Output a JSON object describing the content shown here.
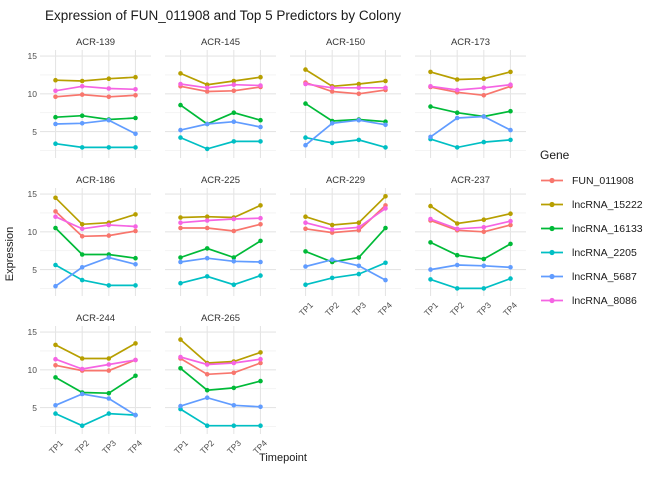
{
  "title": "Expression of FUN_011908 and Top 5 Predictors by Colony",
  "chart_data": {
    "type": "line",
    "facet_by": "Colony",
    "categories": [
      "TP1",
      "TP2",
      "TP3",
      "TP4"
    ],
    "xlabel": "Timepoint",
    "ylabel": "Expression",
    "ylim": [
      1.5,
      15.8
    ],
    "yticks": [
      5,
      10,
      15
    ],
    "yticks_minor": [
      2.5,
      7.5,
      12.5
    ],
    "grid": true,
    "legend_title": "Gene",
    "legend_position": "right",
    "grid_major_color": "#E5E5E5",
    "grid_minor_color": "#F2F2F2",
    "series_meta": [
      {
        "name": "FUN_011908",
        "color": "#F8766D"
      },
      {
        "name": "lncRNA_15222",
        "color": "#B79F00"
      },
      {
        "name": "lncRNA_16133",
        "color": "#00BA38"
      },
      {
        "name": "lncRNA_2205",
        "color": "#00BFC4"
      },
      {
        "name": "lncRNA_5687",
        "color": "#619CFF"
      },
      {
        "name": "lncRNA_8086",
        "color": "#F564E3"
      }
    ],
    "facets": [
      {
        "name": "ACR-139",
        "series": [
          {
            "name": "FUN_011908",
            "values": [
              9.6,
              9.9,
              9.6,
              9.8
            ]
          },
          {
            "name": "lncRNA_15222",
            "values": [
              11.8,
              11.7,
              12.0,
              12.2
            ]
          },
          {
            "name": "lncRNA_16133",
            "values": [
              6.9,
              7.1,
              6.6,
              6.8
            ]
          },
          {
            "name": "lncRNA_2205",
            "values": [
              3.4,
              2.9,
              2.9,
              2.9
            ]
          },
          {
            "name": "lncRNA_5687",
            "values": [
              6.0,
              6.1,
              6.5,
              4.7
            ]
          },
          {
            "name": "lncRNA_8086",
            "values": [
              10.4,
              11.0,
              10.7,
              10.6
            ]
          }
        ]
      },
      {
        "name": "ACR-145",
        "series": [
          {
            "name": "FUN_011908",
            "values": [
              11.0,
              10.3,
              10.4,
              10.9
            ]
          },
          {
            "name": "lncRNA_15222",
            "values": [
              12.7,
              11.2,
              11.7,
              12.2
            ]
          },
          {
            "name": "lncRNA_16133",
            "values": [
              8.5,
              6.0,
              7.5,
              6.5
            ]
          },
          {
            "name": "lncRNA_2205",
            "values": [
              4.2,
              2.7,
              3.7,
              3.7
            ]
          },
          {
            "name": "lncRNA_5687",
            "values": [
              5.2,
              6.0,
              6.3,
              5.6
            ]
          },
          {
            "name": "lncRNA_8086",
            "values": [
              11.3,
              10.8,
              11.2,
              11.1
            ]
          }
        ]
      },
      {
        "name": "ACR-150",
        "series": [
          {
            "name": "FUN_011908",
            "values": [
              11.5,
              10.3,
              10.0,
              10.5
            ]
          },
          {
            "name": "lncRNA_15222",
            "values": [
              13.2,
              11.0,
              11.3,
              11.7
            ]
          },
          {
            "name": "lncRNA_16133",
            "values": [
              8.7,
              6.4,
              6.6,
              6.3
            ]
          },
          {
            "name": "lncRNA_2205",
            "values": [
              4.2,
              3.5,
              3.9,
              2.9
            ]
          },
          {
            "name": "lncRNA_5687",
            "values": [
              3.2,
              6.1,
              6.5,
              5.9
            ]
          },
          {
            "name": "lncRNA_8086",
            "values": [
              11.3,
              10.8,
              10.8,
              10.8
            ]
          }
        ]
      },
      {
        "name": "ACR-173",
        "series": [
          {
            "name": "FUN_011908",
            "values": [
              10.9,
              10.2,
              9.8,
              11.0
            ]
          },
          {
            "name": "lncRNA_15222",
            "values": [
              12.9,
              11.9,
              12.0,
              12.9
            ]
          },
          {
            "name": "lncRNA_16133",
            "values": [
              8.3,
              7.5,
              7.0,
              7.7
            ]
          },
          {
            "name": "lncRNA_2205",
            "values": [
              4.0,
              2.9,
              3.6,
              3.9
            ]
          },
          {
            "name": "lncRNA_5687",
            "values": [
              4.3,
              6.8,
              7.0,
              5.2
            ]
          },
          {
            "name": "lncRNA_8086",
            "values": [
              11.0,
              10.5,
              10.8,
              11.2
            ]
          }
        ]
      },
      {
        "name": "ACR-186",
        "series": [
          {
            "name": "FUN_011908",
            "values": [
              12.7,
              9.4,
              9.5,
              10.1
            ]
          },
          {
            "name": "lncRNA_15222",
            "values": [
              14.5,
              11.0,
              11.2,
              12.3
            ]
          },
          {
            "name": "lncRNA_16133",
            "values": [
              10.5,
              7.0,
              7.0,
              6.5
            ]
          },
          {
            "name": "lncRNA_2205",
            "values": [
              5.6,
              3.6,
              2.9,
              2.9
            ]
          },
          {
            "name": "lncRNA_5687",
            "values": [
              2.8,
              5.3,
              6.6,
              5.7
            ]
          },
          {
            "name": "lncRNA_8086",
            "values": [
              12.0,
              10.4,
              10.9,
              10.7
            ]
          }
        ]
      },
      {
        "name": "ACR-225",
        "series": [
          {
            "name": "FUN_011908",
            "values": [
              10.5,
              10.5,
              10.1,
              11.0
            ]
          },
          {
            "name": "lncRNA_15222",
            "values": [
              11.9,
              12.0,
              11.9,
              13.5
            ]
          },
          {
            "name": "lncRNA_16133",
            "values": [
              6.6,
              7.8,
              6.6,
              8.8
            ]
          },
          {
            "name": "lncRNA_2205",
            "values": [
              3.2,
              4.1,
              3.0,
              4.2
            ]
          },
          {
            "name": "lncRNA_5687",
            "values": [
              6.0,
              6.5,
              6.1,
              6.0
            ]
          },
          {
            "name": "lncRNA_8086",
            "values": [
              11.2,
              11.5,
              11.7,
              11.8
            ]
          }
        ]
      },
      {
        "name": "ACR-229",
        "series": [
          {
            "name": "FUN_011908",
            "values": [
              10.4,
              9.9,
              10.2,
              13.5
            ]
          },
          {
            "name": "lncRNA_15222",
            "values": [
              12.0,
              10.9,
              11.2,
              14.7
            ]
          },
          {
            "name": "lncRNA_16133",
            "values": [
              7.4,
              6.0,
              6.6,
              10.5
            ]
          },
          {
            "name": "lncRNA_2205",
            "values": [
              3.0,
              3.9,
              4.4,
              5.9
            ]
          },
          {
            "name": "lncRNA_5687",
            "values": [
              5.4,
              6.3,
              5.5,
              3.6
            ]
          },
          {
            "name": "lncRNA_8086",
            "values": [
              11.2,
              10.3,
              10.6,
              13.1
            ]
          }
        ]
      },
      {
        "name": "ACR-237",
        "series": [
          {
            "name": "FUN_011908",
            "values": [
              11.5,
              10.2,
              10.0,
              10.9
            ]
          },
          {
            "name": "lncRNA_15222",
            "values": [
              13.4,
              11.1,
              11.6,
              12.4
            ]
          },
          {
            "name": "lncRNA_16133",
            "values": [
              8.6,
              6.9,
              6.4,
              8.4
            ]
          },
          {
            "name": "lncRNA_2205",
            "values": [
              3.7,
              2.5,
              2.5,
              3.8
            ]
          },
          {
            "name": "lncRNA_5687",
            "values": [
              5.0,
              5.6,
              5.5,
              5.3
            ]
          },
          {
            "name": "lncRNA_8086",
            "values": [
              11.7,
              10.4,
              10.6,
              11.4
            ]
          }
        ]
      },
      {
        "name": "ACR-244",
        "series": [
          {
            "name": "FUN_011908",
            "values": [
              10.6,
              9.9,
              9.9,
              11.3
            ]
          },
          {
            "name": "lncRNA_15222",
            "values": [
              13.3,
              11.5,
              11.5,
              13.5
            ]
          },
          {
            "name": "lncRNA_16133",
            "values": [
              9.0,
              7.0,
              6.9,
              9.2
            ]
          },
          {
            "name": "lncRNA_2205",
            "values": [
              4.2,
              2.6,
              4.2,
              4.0
            ]
          },
          {
            "name": "lncRNA_5687",
            "values": [
              5.3,
              6.8,
              6.2,
              4.0
            ]
          },
          {
            "name": "lncRNA_8086",
            "values": [
              11.4,
              10.1,
              10.7,
              11.3
            ]
          }
        ]
      },
      {
        "name": "ACR-265",
        "series": [
          {
            "name": "FUN_011908",
            "values": [
              11.5,
              9.4,
              9.6,
              10.9
            ]
          },
          {
            "name": "lncRNA_15222",
            "values": [
              14.0,
              10.9,
              11.1,
              12.3
            ]
          },
          {
            "name": "lncRNA_16133",
            "values": [
              10.2,
              7.3,
              7.6,
              8.5
            ]
          },
          {
            "name": "lncRNA_2205",
            "values": [
              4.8,
              2.6,
              2.6,
              2.6
            ]
          },
          {
            "name": "lncRNA_5687",
            "values": [
              5.2,
              6.3,
              5.3,
              5.1
            ]
          },
          {
            "name": "lncRNA_8086",
            "values": [
              11.7,
              10.7,
              10.9,
              11.4
            ]
          }
        ]
      }
    ]
  }
}
